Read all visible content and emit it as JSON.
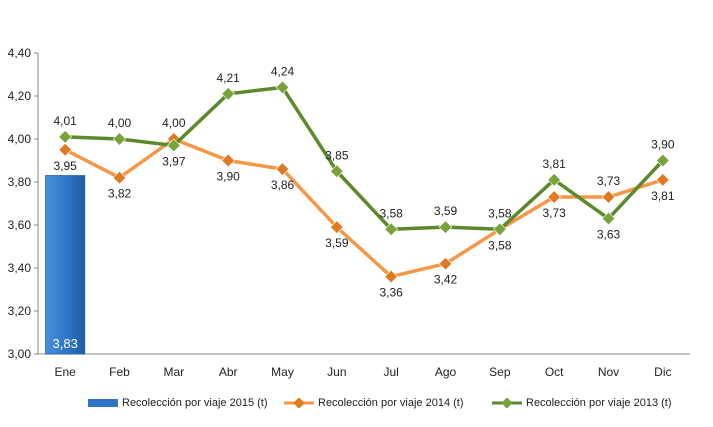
{
  "chart_data": {
    "type": "bar+line",
    "categories": [
      "Ene",
      "Feb",
      "Mar",
      "Abr",
      "May",
      "Jun",
      "Jul",
      "Ago",
      "Sep",
      "Oct",
      "Nov",
      "Dic"
    ],
    "ylim": [
      3.0,
      4.4
    ],
    "yticks": [
      "3,00",
      "3,20",
      "3,40",
      "3,60",
      "3,80",
      "4,00",
      "4,20",
      "4,40"
    ],
    "ytick_values": [
      3.0,
      3.2,
      3.4,
      3.6,
      3.8,
      4.0,
      4.2,
      4.4
    ],
    "grid": false,
    "legend_position": "bottom",
    "bar_series": {
      "name": "Recolección por viaje 2015 (t)",
      "color": "#2e75c8",
      "values": [
        3.83
      ],
      "labels": [
        "3,83"
      ]
    },
    "series": [
      {
        "name": "Recolección por viaje 2014 (t)",
        "color": "#f79646",
        "marker_color": "#e07a22",
        "values": [
          3.95,
          3.82,
          4.0,
          3.9,
          3.86,
          3.59,
          3.36,
          3.42,
          3.58,
          3.73,
          3.73,
          3.81
        ],
        "labels": [
          "3,95",
          "3,82",
          "4,00",
          "3,90",
          "3,86",
          "3,59",
          "3,36",
          "3,42",
          "3,58",
          "3,73",
          "3,73",
          "3,81"
        ]
      },
      {
        "name": "Recolección por viaje 2013 (t)",
        "color": "#5a8a2a",
        "marker_color": "#77a33a",
        "values": [
          4.01,
          4.0,
          3.97,
          4.21,
          4.24,
          3.85,
          3.58,
          3.59,
          3.58,
          3.81,
          3.63,
          3.9
        ],
        "labels": [
          "4,01",
          "4,00",
          "3,97",
          "4,21",
          "4,24",
          "3,85",
          "3,58",
          "3,59",
          "3,58",
          "3,81",
          "3,63",
          "3,90"
        ]
      }
    ]
  }
}
